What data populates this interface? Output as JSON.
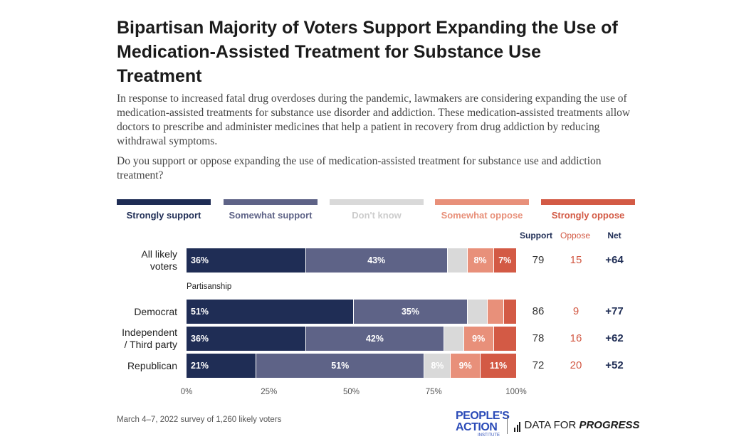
{
  "header": {
    "title": "Bipartisan Majority of Voters Support Expanding the Use of Medication-Assisted Treatment for Substance Use Treatment",
    "subtitle": "In response to increased fatal drug overdoses during the pandemic, lawmakers are considering expanding the use of medication-assisted treatments for substance use disorder and addiction. These medication-assisted treatments allow doctors to prescribe and administer medicines that help a patient in recovery from drug addiction by reducing withdrawal symptoms.",
    "question": "Do you support or oppose expanding the use of medication-assisted treatment for substance use and addiction treatment?"
  },
  "columns": {
    "support": "Support",
    "oppose": "Oppose",
    "net": "Net"
  },
  "section_label": "Partisanship",
  "colors": {
    "strongly_support": "#1f2d55",
    "somewhat_support": "#5e6387",
    "dont_know": "#d9d9d9",
    "somewhat_oppose": "#e8907a",
    "strongly_oppose": "#d35a45",
    "oppose_number": "#d35a45",
    "support_number": "#333333"
  },
  "chart_data": {
    "type": "bar",
    "orientation": "horizontal",
    "stacked": true,
    "categories": [
      "All likely voters",
      "Democrat",
      "Independent / Third party",
      "Republican"
    ],
    "series": [
      {
        "name": "Strongly support",
        "values": [
          36,
          51,
          36,
          21
        ],
        "labels": [
          "36%",
          "51%",
          "36%",
          "21%"
        ]
      },
      {
        "name": "Somewhat support",
        "values": [
          43,
          35,
          42,
          51
        ],
        "labels": [
          "43%",
          "35%",
          "42%",
          "51%"
        ]
      },
      {
        "name": "Don't know",
        "values": [
          6,
          6,
          6,
          8
        ],
        "labels": [
          "",
          "",
          "",
          "8%"
        ]
      },
      {
        "name": "Somewhat oppose",
        "values": [
          8,
          5,
          9,
          9
        ],
        "labels": [
          "8%",
          "",
          "9%",
          "9%"
        ]
      },
      {
        "name": "Strongly oppose",
        "values": [
          7,
          4,
          7,
          11
        ],
        "labels": [
          "7%",
          "",
          "",
          "11%"
        ]
      }
    ],
    "totals": {
      "support": [
        "79",
        "86",
        "78",
        "72"
      ],
      "oppose": [
        "15",
        "9",
        "16",
        "20"
      ],
      "net": [
        "+64",
        "+77",
        "+62",
        "+52"
      ]
    },
    "xlim": [
      0,
      100
    ],
    "xticks": [
      "0%",
      "25%",
      "50%",
      "75%",
      "100%"
    ],
    "legend_position": "top"
  },
  "footer": {
    "source": "March 4–7, 2022 survey of 1,260 likely voters",
    "logo_pa_line1": "PEOPLE'S",
    "logo_pa_line2": "ACTION",
    "logo_pa_line3": "INSTITUTE",
    "logo_dfp_a": "DATA FOR ",
    "logo_dfp_b": "PROGRESS"
  }
}
